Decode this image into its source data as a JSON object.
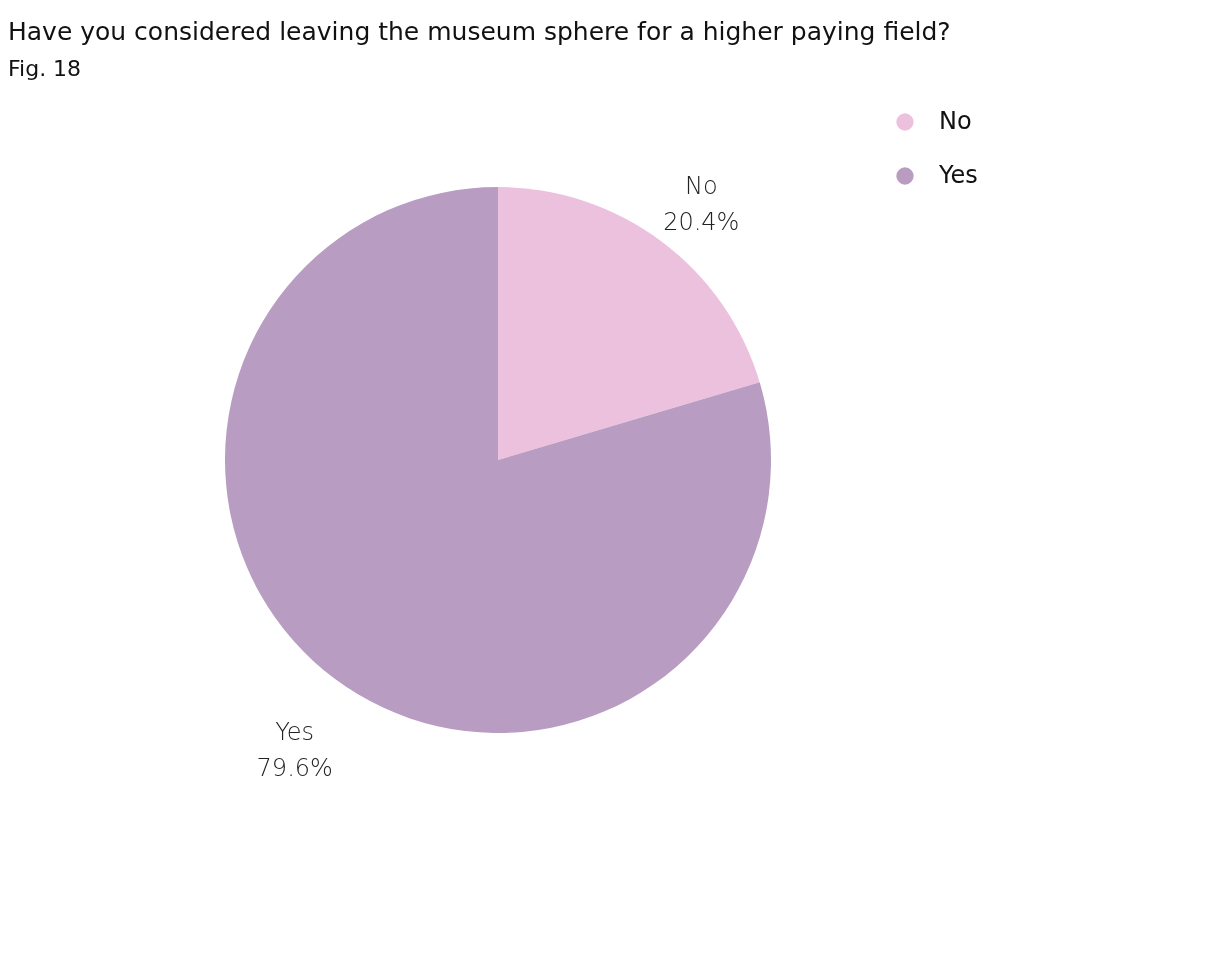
{
  "chart_data": {
    "type": "pie",
    "title": "Have you considered leaving the museum sphere for a higher paying field?",
    "subtitle": "Fig. 18",
    "categories": [
      "No",
      "Yes"
    ],
    "values": [
      20.4,
      79.6
    ],
    "colors": [
      "#ecc1de",
      "#b89cc2"
    ],
    "value_labels": [
      "20.4%",
      "79.6%"
    ],
    "legend": "top right"
  }
}
